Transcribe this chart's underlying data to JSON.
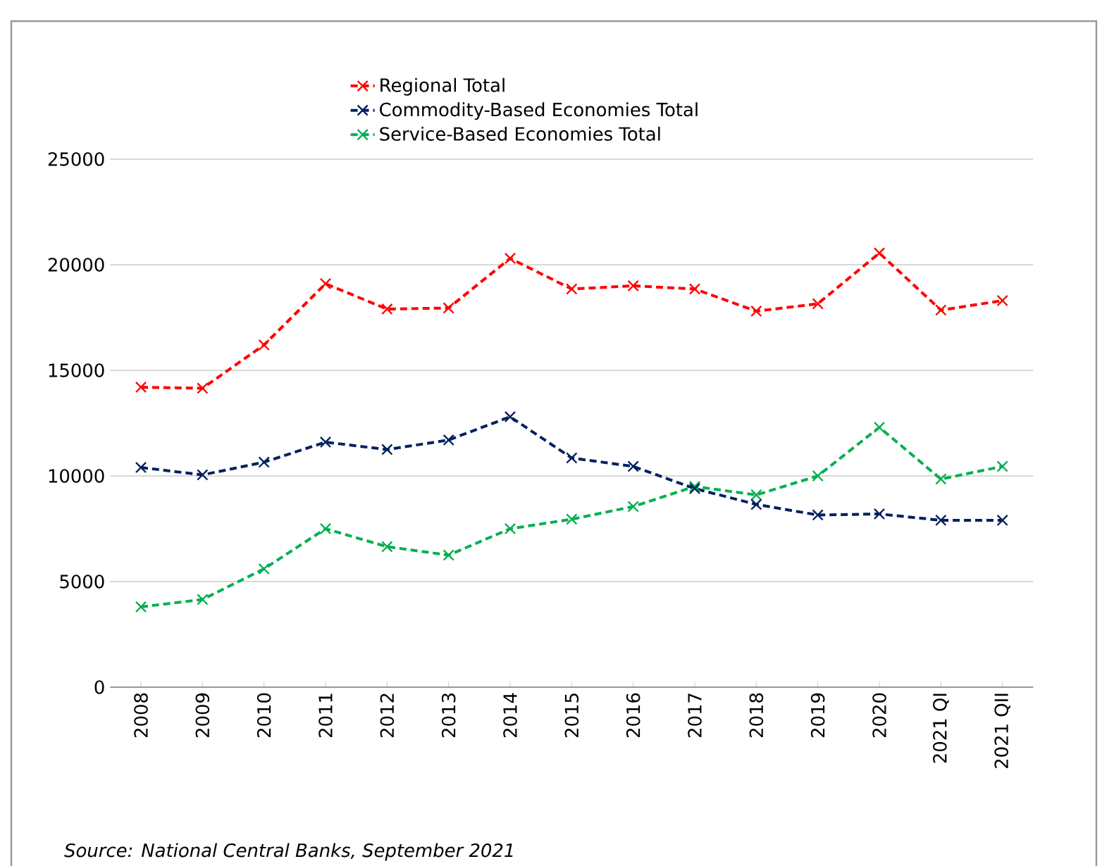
{
  "chart_data": {
    "type": "line",
    "categories": [
      "2008",
      "2009",
      "2010",
      "2011",
      "2012",
      "2013",
      "2014",
      "2015",
      "2016",
      "2017",
      "2018",
      "2019",
      "2020",
      "2021 QI",
      "2021 QII"
    ],
    "series": [
      {
        "name": "Regional Total",
        "color": "#ff0000",
        "values": [
          14200,
          14150,
          16200,
          19100,
          17900,
          17950,
          20300,
          18850,
          19000,
          18850,
          17800,
          18150,
          20550,
          17850,
          18300
        ]
      },
      {
        "name": "Commodity-Based Economies Total",
        "color": "#002060",
        "values": [
          10400,
          10050,
          10650,
          11600,
          11250,
          11700,
          12800,
          10850,
          10450,
          9400,
          8650,
          8150,
          8200,
          7900,
          7900
        ]
      },
      {
        "name": "Service-Based Economies Total",
        "color": "#00b050",
        "values": [
          3800,
          4150,
          5600,
          7500,
          6650,
          6250,
          7500,
          7950,
          8550,
          9500,
          9100,
          10000,
          12300,
          9850,
          10450
        ]
      }
    ],
    "ylim": [
      0,
      25000
    ],
    "yticks": [
      0,
      5000,
      10000,
      15000,
      20000,
      25000
    ],
    "grid": "y",
    "legend": "top",
    "marker": "cross",
    "line_style": "dashed",
    "annotations": [
      "Source: National Central Banks, September 2021"
    ]
  }
}
